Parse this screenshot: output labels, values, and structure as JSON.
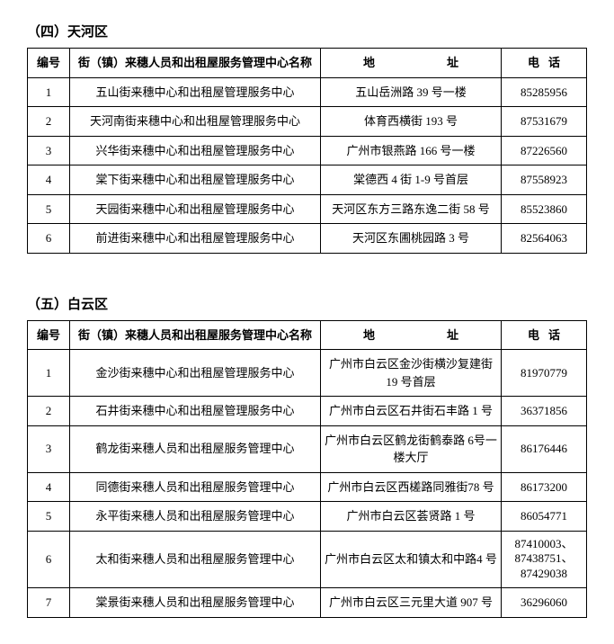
{
  "section1": {
    "title": "（四）天河区",
    "headers": {
      "num": "编号",
      "name": "街（镇）来穗人员和出租屋服务管理中心名称",
      "addr": "地　　址",
      "phone": "电话"
    },
    "rows": [
      {
        "num": "1",
        "name": "五山街来穗中心和出租屋管理服务中心",
        "addr": "五山岳洲路 39 号一楼",
        "phone": "85285956"
      },
      {
        "num": "2",
        "name": "天河南街来穗中心和出租屋管理服务中心",
        "addr": "体育西横街 193 号",
        "phone": "87531679"
      },
      {
        "num": "3",
        "name": "兴华街来穗中心和出租屋管理服务中心",
        "addr": "广州市银燕路 166 号一楼",
        "phone": "87226560"
      },
      {
        "num": "4",
        "name": "棠下街来穗中心和出租屋管理服务中心",
        "addr": "棠德西 4 街 1-9 号首层",
        "phone": "87558923"
      },
      {
        "num": "5",
        "name": "天园街来穗中心和出租屋管理服务中心",
        "addr": "天河区东方三路东逸二街 58 号",
        "phone": "85523860"
      },
      {
        "num": "6",
        "name": "前进街来穗中心和出租屋管理服务中心",
        "addr": "天河区东圃桃园路 3 号",
        "phone": "82564063"
      }
    ]
  },
  "section2": {
    "title": "（五）白云区",
    "headers": {
      "num": "编号",
      "name": "街（镇）来穗人员和出租屋服务管理中心名称",
      "addr": "地　　址",
      "phone": "电话"
    },
    "rows": [
      {
        "num": "1",
        "name": "金沙街来穗中心和出租屋管理服务中心",
        "addr": "广州市白云区金沙街横沙复建街 19 号首层",
        "phone": "81970779"
      },
      {
        "num": "2",
        "name": "石井街来穗中心和出租屋管理服务中心",
        "addr": "广州市白云区石井街石丰路 1 号",
        "phone": "36371856"
      },
      {
        "num": "3",
        "name": "鹤龙街来穗人员和出租屋服务管理中心",
        "addr": "广州市白云区鹤龙街鹤泰路 6号一楼大厅",
        "phone": "86176446"
      },
      {
        "num": "4",
        "name": "同德街来穗人员和出租屋服务管理中心",
        "addr": "广州市白云区西槎路同雅街78 号",
        "phone": "86173200"
      },
      {
        "num": "5",
        "name": "永平街来穗人员和出租屋服务管理中心",
        "addr": "广州市白云区荟贤路 1 号",
        "phone": "86054771"
      },
      {
        "num": "6",
        "name": "太和街来穗人员和出租屋服务管理中心",
        "addr": "广州市白云区太和镇太和中路4 号",
        "phone": "87410003、87438751、87429038"
      },
      {
        "num": "7",
        "name": "棠景街来穗人员和出租屋服务管理中心",
        "addr": "广州市白云区三元里大道 907 号",
        "phone": "36296060"
      }
    ]
  }
}
